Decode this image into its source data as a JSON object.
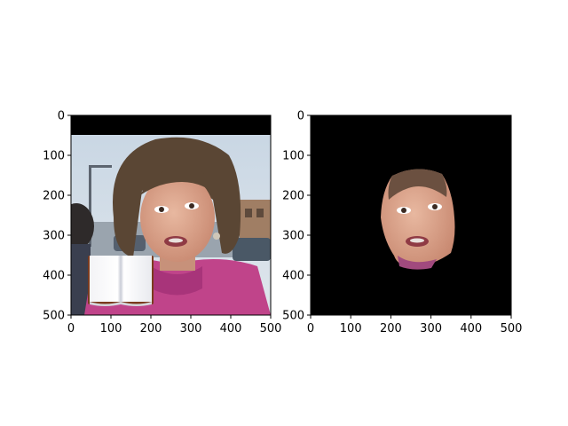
{
  "chart_data": [
    {
      "type": "image",
      "xlim": [
        0,
        500
      ],
      "ylim": [
        500,
        0
      ],
      "xticks": [
        0,
        100,
        200,
        300,
        400,
        500
      ],
      "yticks": [
        0,
        100,
        200,
        300,
        400,
        500
      ],
      "image": "portrait of a woman with dark hair in a magenta top against an outdoor street background; black band across the top rows; a small open-book graphic overlaid near the lower-left",
      "colors": {
        "top_band": "#000000",
        "sky": "#c9d6e2",
        "top": "#c0448a"
      }
    },
    {
      "type": "image",
      "xlim": [
        0,
        500
      ],
      "ylim": [
        500,
        0
      ],
      "xticks": [
        0,
        100,
        200,
        300,
        400,
        500
      ],
      "yticks": [
        0,
        100,
        200,
        300,
        400,
        500
      ],
      "image": "segmented face region only, on black background",
      "colors": {
        "background": "#000000",
        "skin": "#d9a58c"
      }
    }
  ]
}
